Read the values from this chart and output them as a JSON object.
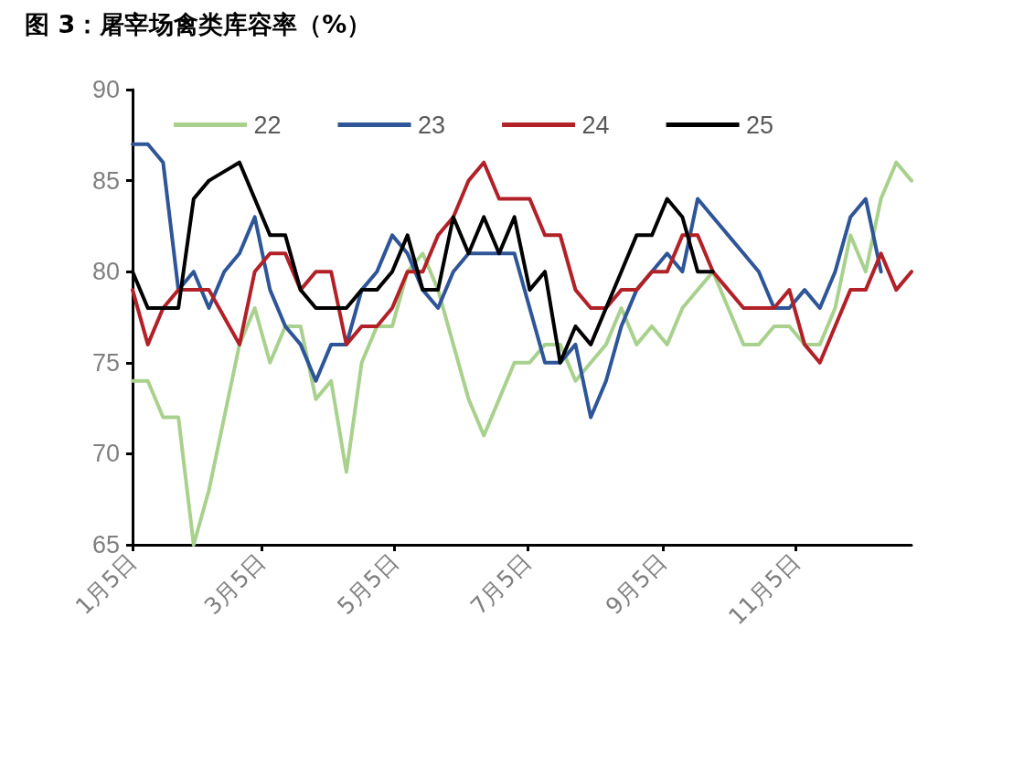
{
  "chart_data": {
    "type": "line",
    "title": "图 3：屠宰场禽类库容率（%）",
    "x": [
      "--01-05",
      "--01-12",
      "--01-19",
      "--01-26",
      "--02-02",
      "--02-09",
      "--02-16",
      "--02-23",
      "--03-02",
      "--03-09",
      "--03-16",
      "--03-23",
      "--03-30",
      "--04-06",
      "--04-13",
      "--04-20",
      "--04-27",
      "--05-04",
      "--05-11",
      "--05-18",
      "--05-25",
      "--06-01",
      "--06-08",
      "--06-15",
      "--06-22",
      "--06-29",
      "--07-06",
      "--07-13",
      "--07-20",
      "--07-27",
      "--08-03",
      "--08-10",
      "--08-17",
      "--08-24",
      "--08-31",
      "--09-07",
      "--09-14",
      "--09-21",
      "--09-28",
      "--10-05",
      "--10-12",
      "--10-19",
      "--10-26",
      "--11-02",
      "--11-09",
      "--11-16",
      "--11-23",
      "--11-30",
      "--12-07",
      "--12-14",
      "--12-21",
      "--12-28"
    ],
    "series": [
      {
        "name": "22",
        "color": "#a9d18e",
        "values": [
          74,
          74,
          72,
          72,
          65,
          68,
          72,
          76,
          78,
          75,
          77,
          77,
          73,
          74,
          69,
          75,
          77,
          77,
          80,
          81,
          79,
          76,
          73,
          71,
          73,
          75,
          75,
          76,
          76,
          74,
          75,
          76,
          78,
          76,
          77,
          76,
          78,
          79,
          80,
          78,
          76,
          76,
          77,
          77,
          76,
          76,
          78,
          82,
          80,
          84,
          86,
          85
        ]
      },
      {
        "name": "23",
        "color": "#2e5597",
        "values": [
          87,
          87,
          86,
          79,
          80,
          78,
          80,
          81,
          83,
          79,
          77,
          76,
          74,
          76,
          76,
          79,
          80,
          82,
          81,
          79,
          78,
          80,
          81,
          81,
          81,
          81,
          78,
          75,
          75,
          76,
          72,
          74,
          77,
          79,
          80,
          81,
          80,
          84,
          83,
          82,
          81,
          80,
          78,
          78,
          79,
          78,
          80,
          83,
          84,
          80,
          null,
          null
        ]
      },
      {
        "name": "24",
        "color": "#b22028",
        "values": [
          79,
          76,
          78,
          79,
          79,
          79,
          77.5,
          76,
          80,
          81,
          81,
          79,
          80,
          80,
          76,
          77,
          77,
          78,
          80,
          80,
          82,
          83,
          85,
          86,
          84,
          84,
          84,
          82,
          82,
          79,
          78,
          78,
          79,
          79,
          80,
          80,
          82,
          82,
          80,
          79,
          78,
          78,
          78,
          79,
          76,
          75,
          77,
          79,
          79,
          81,
          79,
          80
        ]
      },
      {
        "name": "25",
        "color": "#000000",
        "values": [
          80,
          78,
          78,
          78,
          84,
          85,
          85.5,
          86,
          84,
          82,
          82,
          79,
          78,
          78,
          78,
          79,
          79,
          80,
          82,
          79,
          79,
          83,
          81,
          83,
          81,
          83,
          79,
          80,
          75,
          77,
          76,
          78,
          80,
          82,
          82,
          84,
          83,
          80,
          80,
          null,
          null,
          null,
          null,
          null,
          null,
          null,
          null,
          null,
          null,
          null,
          null,
          null
        ]
      }
    ],
    "xlim": [
      "--01-05",
      "--12-28"
    ],
    "xticks": [
      {
        "value": "--01-05",
        "label": "1月5日"
      },
      {
        "value": "--03-05",
        "label": "3月5日"
      },
      {
        "value": "--05-05",
        "label": "5月5日"
      },
      {
        "value": "--07-05",
        "label": "7月5日"
      },
      {
        "value": "--09-05",
        "label": "9月5日"
      },
      {
        "value": "--11-05",
        "label": "11月5日"
      }
    ],
    "ylim": [
      65,
      90
    ],
    "yticks": [
      65,
      70,
      75,
      80,
      85,
      90
    ],
    "grid": false,
    "legend": "top",
    "marker": "none",
    "line_style": "solid"
  }
}
